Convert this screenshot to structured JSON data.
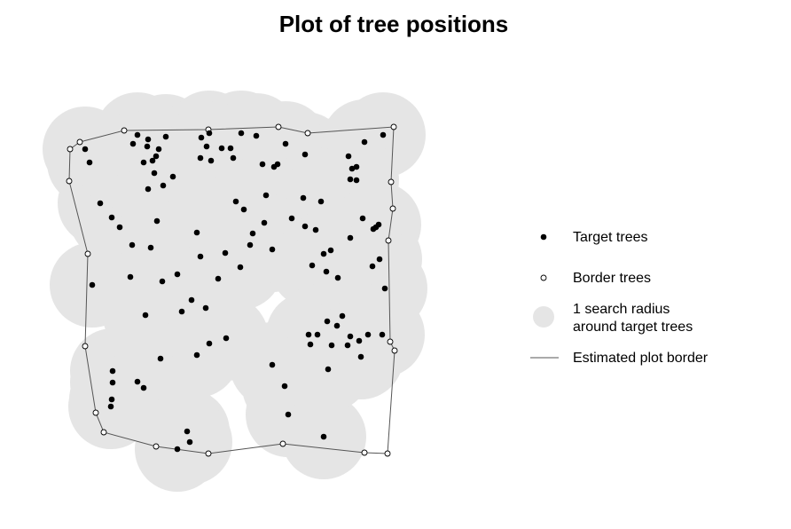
{
  "chart_data": {
    "type": "scatter",
    "title": "Plot of tree positions",
    "series": [
      {
        "name": "Target trees",
        "color": "#000000",
        "x": [
          155,
          167,
          187,
          150,
          166,
          179,
          176,
          172,
          162,
          174,
          184,
          195,
          167,
          227,
          236,
          250,
          260,
          272,
          289,
          233,
          226,
          238,
          263,
          296,
          309,
          313,
          322,
          344,
          411,
          432,
          393,
          402,
          397,
          395,
          402,
          96,
          101,
          113,
          126,
          135,
          149,
          177,
          170,
          147,
          183,
          200,
          164,
          205,
          216,
          232,
          222,
          226,
          254,
          246,
          271,
          266,
          275,
          300,
          298,
          285,
          307,
          282,
          329,
          342,
          344,
          362,
          356,
          365,
          373,
          352,
          368,
          381,
          395,
          409,
          421,
          424,
          427,
          428,
          420,
          434,
          104,
          181,
          222,
          236,
          255,
          307,
          321,
          325,
          365,
          348,
          350,
          358,
          369,
          374,
          380,
          386,
          392,
          395,
          405,
          407,
          415,
          431,
          370,
          127,
          127,
          126,
          125,
          155,
          162,
          211,
          214,
          200
        ],
        "y": [
          448,
          443,
          446,
          438,
          435,
          432,
          424,
          419,
          417,
          405,
          391,
          401,
          387,
          445,
          450,
          433,
          433,
          450,
          447,
          435,
          422,
          419,
          422,
          415,
          412,
          415,
          438,
          426,
          440,
          448,
          424,
          412,
          410,
          398,
          397,
          432,
          417,
          371,
          355,
          344,
          324,
          351,
          321,
          288,
          283,
          291,
          245,
          249,
          262,
          253,
          338,
          311,
          315,
          286,
          299,
          373,
          364,
          380,
          349,
          337,
          319,
          324,
          354,
          377,
          345,
          373,
          341,
          314,
          318,
          301,
          294,
          287,
          332,
          354,
          342,
          344,
          347,
          308,
          300,
          275,
          279,
          196,
          200,
          213,
          219,
          189,
          165,
          133,
          108,
          223,
          212,
          223,
          238,
          211,
          233,
          244,
          211,
          221,
          216,
          198,
          223,
          223,
          184,
          182,
          169,
          150,
          142,
          170,
          163,
          114,
          102,
          94
        ]
      },
      {
        "name": "Border trees",
        "color": "#000000",
        "x": [
          79,
          90,
          140,
          235,
          314,
          347,
          444,
          441,
          443,
          438,
          440,
          445,
          437,
          411,
          319,
          235,
          176,
          117,
          108,
          96,
          99,
          78
        ],
        "y": [
          432,
          440,
          453,
          454,
          457,
          450,
          457,
          395,
          365,
          329,
          215,
          205,
          89,
          90,
          100,
          89,
          97,
          113,
          135,
          210,
          314,
          396
        ]
      }
    ],
    "search_area": {
      "label": [
        "1 search radius",
        "around target trees"
      ],
      "radius": 48,
      "color": "#e5e5e5"
    },
    "border": {
      "name": "Estimated plot border",
      "color": "#555555"
    }
  }
}
